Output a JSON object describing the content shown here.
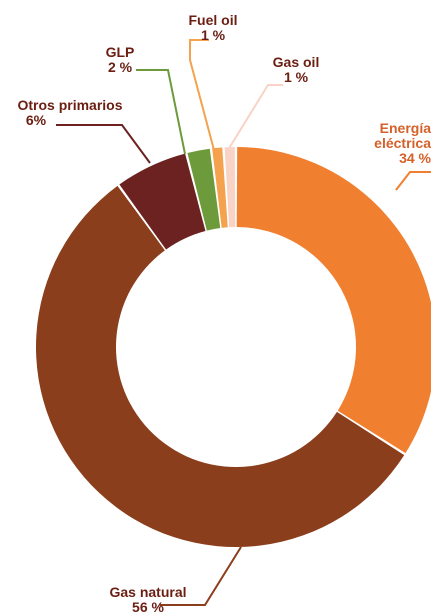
{
  "chart_data": {
    "type": "pie",
    "donut": true,
    "slices": [
      {
        "label": "Energía eléctrica",
        "label_lines": [
          "Energía",
          "eléctrica"
        ],
        "value_label": "34 %",
        "value": 34,
        "color": "#f08030"
      },
      {
        "label": "Gas natural",
        "label_lines": [
          "Gas natural"
        ],
        "value_label": "56 %",
        "value": 56,
        "color": "#8b3e1c"
      },
      {
        "label": "Otros primarios",
        "label_lines": [
          "Otros primarios"
        ],
        "value_label": "6%",
        "value": 6,
        "color": "#6b2221"
      },
      {
        "label": "GLP",
        "label_lines": [
          "GLP"
        ],
        "value_label": "2 %",
        "value": 2,
        "color": "#6d9a3a"
      },
      {
        "label": "Fuel oil",
        "label_lines": [
          "Fuel oil"
        ],
        "value_label": "1 %",
        "value": 1,
        "color": "#f4a24e"
      },
      {
        "label": "Gas oil",
        "label_lines": [
          "Gas oil"
        ],
        "value_label": "1 %",
        "value": 1,
        "color": "#f8d3c6"
      }
    ],
    "label_color": "#6b1e12"
  }
}
